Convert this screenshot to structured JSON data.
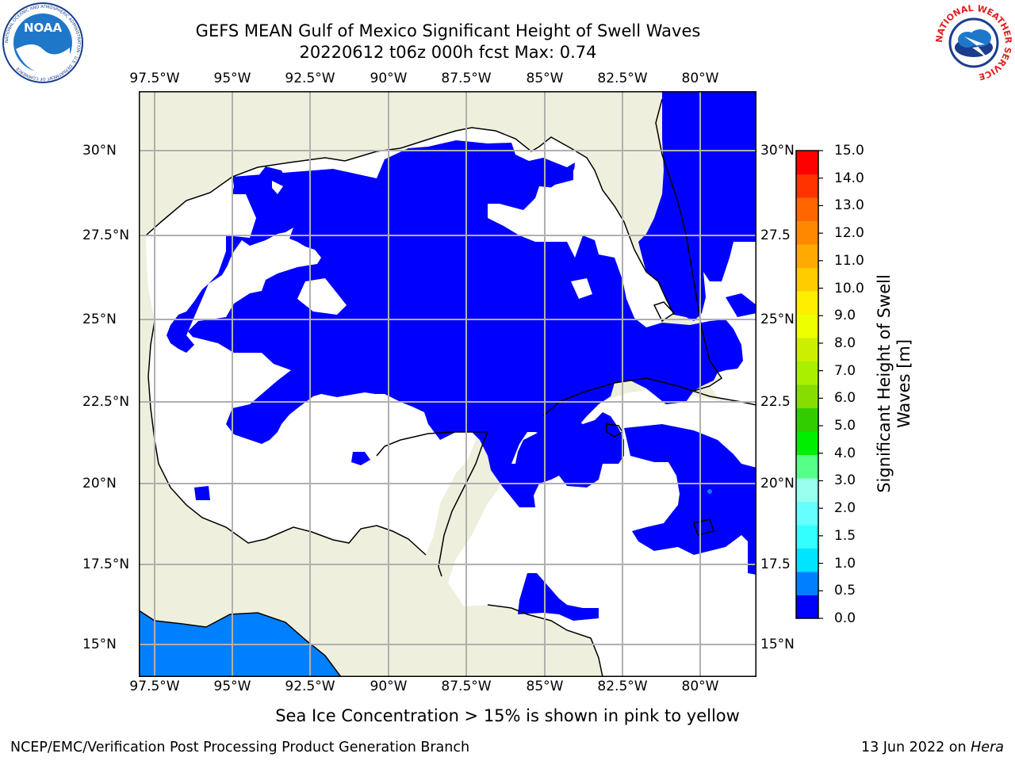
{
  "title": {
    "line1": "GEFS MEAN Gulf of Mexico Significant Height of Swell Waves",
    "line2": "20220612 t06z 000h fcst   Max: 0.74"
  },
  "logos": {
    "left": {
      "text": "NOAA",
      "ring": "NATIONAL OCEANIC AND ATMOSPHERIC ADMINISTRATION · U.S. DEPARTMENT OF COMMERCE"
    },
    "right": {
      "ring": "NATIONAL WEATHER SERVICE"
    }
  },
  "map": {
    "lon_ticks": [
      "97.5°W",
      "95°W",
      "92.5°W",
      "90°W",
      "87.5°W",
      "85°W",
      "82.5°W",
      "80°W"
    ],
    "lat_ticks_left": [
      "30°N",
      "27.5°N",
      "25°N",
      "22.5°N",
      "20°N",
      "17.5°N",
      "15°N"
    ],
    "lat_ticks_right": [
      "30°N",
      "27.5",
      "25°N",
      "22.5",
      "20°N",
      "17.5",
      "15°N"
    ],
    "colors": {
      "land": "#efefdd",
      "ocean": "#ffffff",
      "swell_low": "#0000ff",
      "swell_mid": "#0080ff",
      "grid": "#b0b0b0"
    }
  },
  "colorbar": {
    "label": "Significant Height of Swell Waves [m]",
    "label_line1": "Significant Height of Swell",
    "label_line2": "Waves [m]",
    "ticks": [
      "0.0",
      "0.5",
      "1.0",
      "1.5",
      "2.0",
      "3.0",
      "4.0",
      "5.0",
      "6.0",
      "7.0",
      "8.0",
      "9.0",
      "10.0",
      "11.0",
      "12.0",
      "13.0",
      "14.0",
      "15.0"
    ],
    "colors": [
      "#0000ff",
      "#0080ff",
      "#00e5ff",
      "#33ffff",
      "#66ffff",
      "#99ffee",
      "#55ff88",
      "#00ee00",
      "#33cc00",
      "#88dd00",
      "#aaee00",
      "#ccee00",
      "#eeff00",
      "#ffee00",
      "#ffcc00",
      "#ffaa00",
      "#ff8800",
      "#ff6600",
      "#ff3300",
      "#ff0000"
    ]
  },
  "caption": "Sea Ice Concentration > 15% is shown in pink to yellow",
  "footer": {
    "left": "NCEP/EMC/Verification Post Processing Product Generation Branch",
    "right_prefix": "13 Jun 2022 on ",
    "right_host": "Hera"
  }
}
